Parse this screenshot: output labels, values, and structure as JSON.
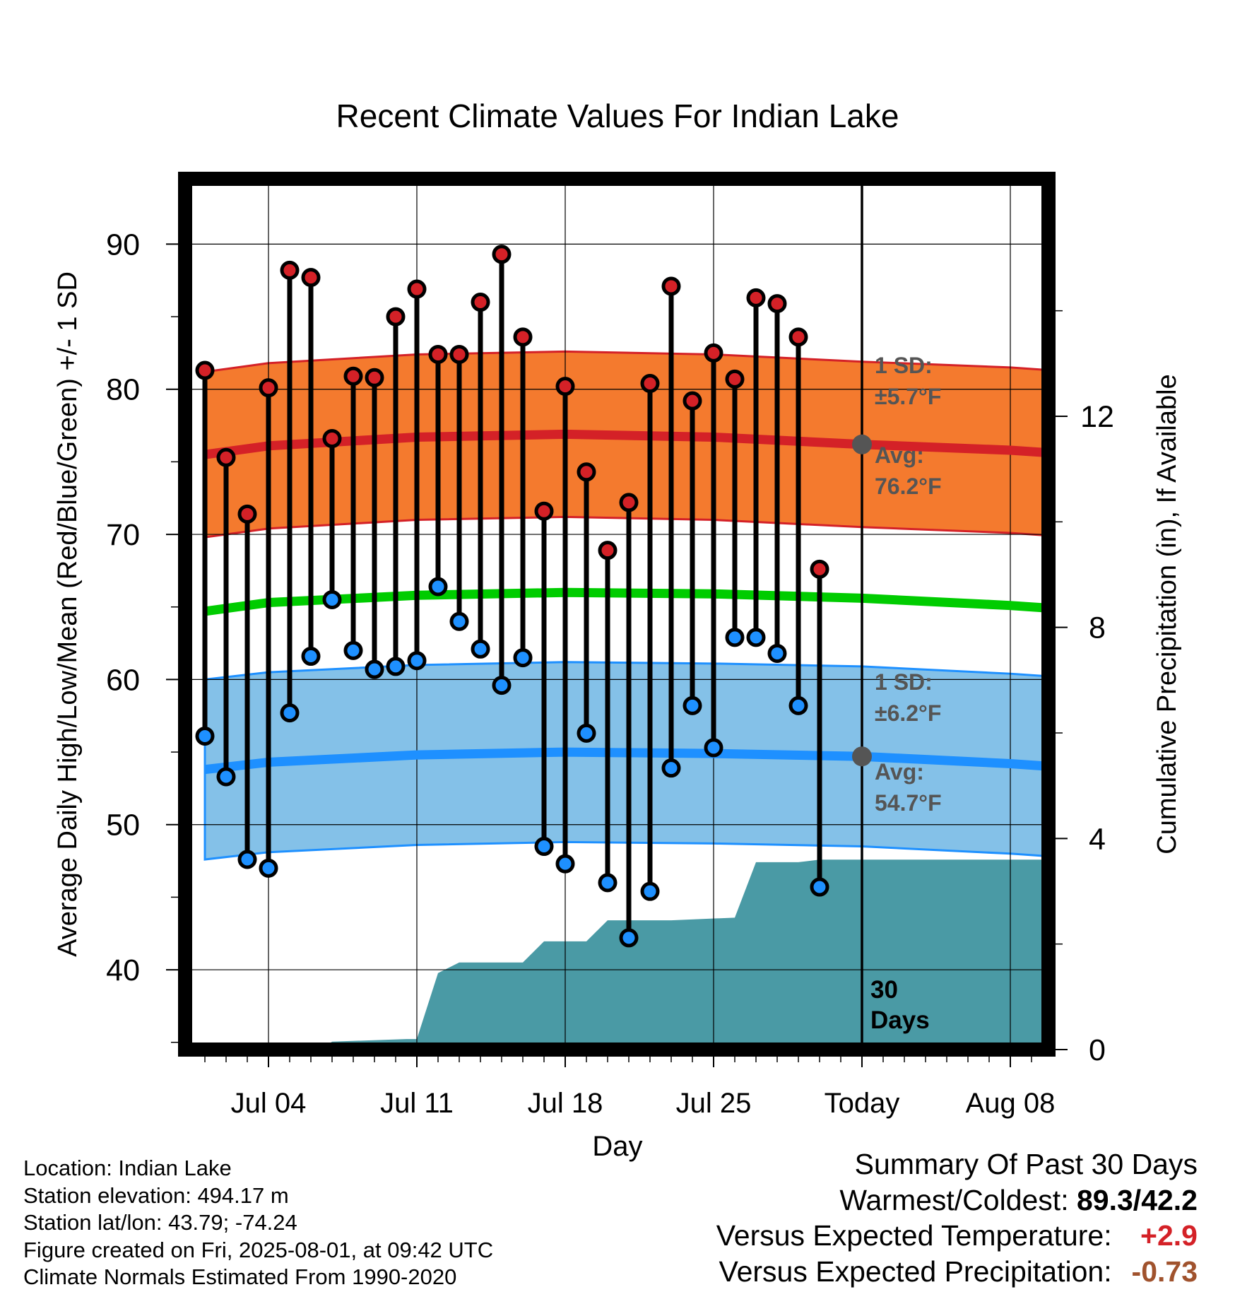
{
  "chart_data": {
    "type": "line",
    "title": "Recent Climate Values For Indian Lake",
    "xlabel": "Day",
    "ylabel": "Average Daily High/Low/Mean (Red/Blue/Green) +/- 1 SD",
    "y2label": "Cumulative Precipitation (in), If Available",
    "x_range": [
      "2025-07-01",
      "2025-08-11"
    ],
    "ylim": [
      34.5,
      94.5
    ],
    "y2lim": [
      0,
      16.5
    ],
    "xticks": [
      {
        "date": "2025-07-04",
        "label": "Jul 04"
      },
      {
        "date": "2025-07-11",
        "label": "Jul 11"
      },
      {
        "date": "2025-07-18",
        "label": "Jul 18"
      },
      {
        "date": "2025-07-25",
        "label": "Jul 25"
      },
      {
        "date": "2025-08-01",
        "label": "Today"
      },
      {
        "date": "2025-08-08",
        "label": "Aug 08"
      }
    ],
    "yticks": [
      40,
      50,
      60,
      70,
      80,
      90
    ],
    "y2ticks": [
      0,
      4,
      8,
      12
    ],
    "today": "2025-08-01",
    "grid": true,
    "normals": {
      "dates": [
        "2025-07-01",
        "2025-07-04",
        "2025-07-11",
        "2025-07-18",
        "2025-07-25",
        "2025-08-01",
        "2025-08-08",
        "2025-08-11"
      ],
      "high_mean": [
        75.5,
        76.1,
        76.7,
        76.9,
        76.7,
        76.2,
        75.8,
        75.5
      ],
      "high_sd": 5.7,
      "low_mean": [
        53.8,
        54.3,
        54.8,
        55.0,
        54.9,
        54.7,
        54.2,
        53.9
      ],
      "low_sd": 6.2,
      "mean": [
        64.7,
        65.3,
        65.8,
        66.0,
        65.9,
        65.6,
        65.1,
        64.8
      ]
    },
    "series": [
      {
        "name": "High",
        "color": "#d42127",
        "x": [
          "2025-07-01",
          "2025-07-02",
          "2025-07-03",
          "2025-07-04",
          "2025-07-05",
          "2025-07-06",
          "2025-07-07",
          "2025-07-08",
          "2025-07-09",
          "2025-07-10",
          "2025-07-11",
          "2025-07-12",
          "2025-07-13",
          "2025-07-14",
          "2025-07-15",
          "2025-07-16",
          "2025-07-17",
          "2025-07-18",
          "2025-07-19",
          "2025-07-20",
          "2025-07-21",
          "2025-07-22",
          "2025-07-23",
          "2025-07-24",
          "2025-07-25",
          "2025-07-26",
          "2025-07-27",
          "2025-07-28",
          "2025-07-29",
          "2025-07-30",
          "2025-07-31"
        ],
        "values": [
          81.3,
          75.3,
          71.4,
          80.1,
          88.2,
          87.7,
          76.6,
          80.9,
          80.8,
          85.0,
          86.9,
          82.4,
          82.4,
          86.0,
          89.3,
          83.6,
          71.6,
          80.2,
          74.3,
          68.9,
          72.2,
          80.4,
          87.1,
          79.2,
          82.5,
          80.7,
          86.3,
          85.9,
          83.6,
          67.6,
          null
        ]
      },
      {
        "name": "Low",
        "color": "#1e90ff",
        "x": [
          "2025-07-01",
          "2025-07-02",
          "2025-07-03",
          "2025-07-04",
          "2025-07-05",
          "2025-07-06",
          "2025-07-07",
          "2025-07-08",
          "2025-07-09",
          "2025-07-10",
          "2025-07-11",
          "2025-07-12",
          "2025-07-13",
          "2025-07-14",
          "2025-07-15",
          "2025-07-16",
          "2025-07-17",
          "2025-07-18",
          "2025-07-19",
          "2025-07-20",
          "2025-07-21",
          "2025-07-22",
          "2025-07-23",
          "2025-07-24",
          "2025-07-25",
          "2025-07-26",
          "2025-07-27",
          "2025-07-28",
          "2025-07-29",
          "2025-07-30",
          "2025-07-31"
        ],
        "values": [
          56.1,
          53.3,
          47.6,
          47.0,
          57.7,
          61.6,
          65.5,
          62.0,
          60.7,
          60.9,
          61.3,
          66.4,
          64.0,
          62.1,
          59.6,
          61.5,
          48.5,
          47.3,
          56.3,
          46.0,
          42.2,
          45.4,
          53.9,
          58.2,
          55.3,
          62.9,
          62.9,
          61.8,
          58.2,
          45.7,
          null
        ]
      },
      {
        "name": "Cumulative Precipitation",
        "color": "#4a9aa5",
        "type": "area",
        "axis": "y2",
        "x": [
          "2025-07-01",
          "2025-07-03.5",
          "2025-07-06.5",
          "2025-07-07",
          "2025-07-10.5",
          "2025-07-11",
          "2025-07-12",
          "2025-07-13",
          "2025-07-16",
          "2025-07-17",
          "2025-07-19",
          "2025-07-20",
          "2025-07-23",
          "2025-07-26",
          "2025-07-27",
          "2025-07-29",
          "2025-07-30",
          "2025-08-11"
        ],
        "values": [
          0,
          0,
          0,
          0.15,
          0.2,
          0.2,
          1.45,
          1.65,
          1.65,
          2.05,
          2.05,
          2.45,
          2.45,
          2.5,
          3.55,
          3.55,
          3.6,
          3.6
        ]
      }
    ],
    "annotations": {
      "high_sd_label": "1 SD:",
      "high_sd_value": "±5.7°F",
      "high_avg_label": "Avg:",
      "high_avg_value": "76.2°F",
      "low_sd_label": "1 SD:",
      "low_sd_value": "±6.2°F",
      "low_avg_label": "Avg:",
      "low_avg_value": "54.7°F",
      "days_line1": "30",
      "days_line2": "Days"
    }
  },
  "info": {
    "location": "Location: Indian Lake",
    "elevation": "Station elevation: 494.17 m",
    "latlon": "Station lat/lon: 43.79; -74.24",
    "created": "Figure created on Fri, 2025-08-01, at 09:42 UTC",
    "normals": "Climate Normals Estimated From 1990-2020"
  },
  "summary": {
    "heading": "Summary Of Past 30 Days",
    "warm_cold_label": "Warmest/Coldest:",
    "warm_cold_value": "89.3/42.2",
    "temp_label": "Versus Expected Temperature:",
    "temp_value": "+2.9",
    "temp_color": "#d42127",
    "precip_label": "Versus Expected Precipitation:",
    "precip_value": "-0.73",
    "precip_color": "#a0522d"
  },
  "colors": {
    "high_band": "#f47a2e",
    "high_line": "#d42127",
    "low_band": "#84c1e8",
    "low_line": "#1e90ff",
    "mean_line": "#00cc00",
    "precip": "#4a9aa5",
    "annotation": "#555555"
  }
}
